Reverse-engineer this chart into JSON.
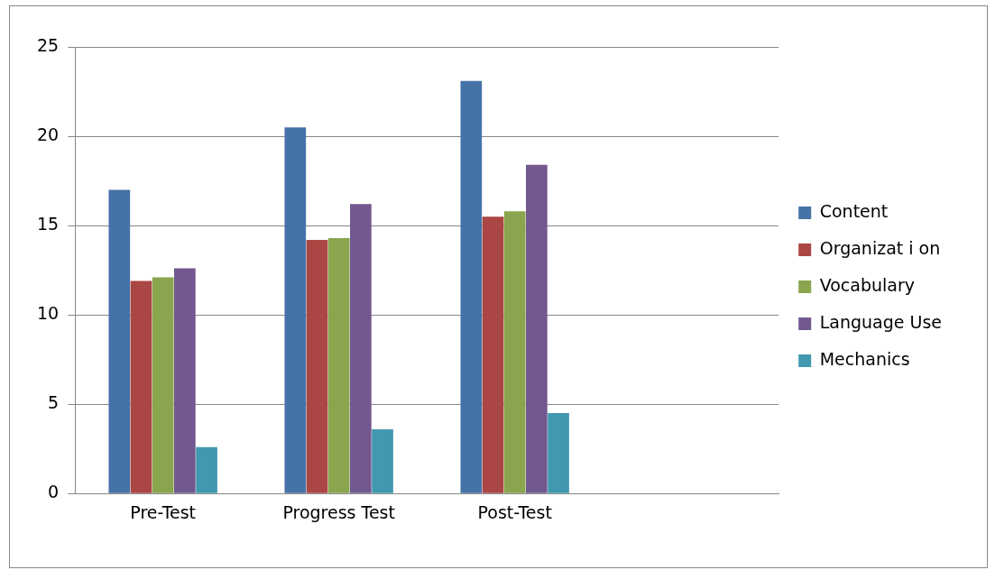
{
  "chart_data": {
    "type": "bar",
    "categories": [
      "Pre-Test",
      "Progress Test",
      "Post-Test",
      null
    ],
    "series": [
      {
        "name": "Content",
        "color": "#4572a7",
        "values": [
          17,
          20.5,
          23.1,
          null
        ]
      },
      {
        "name": "Organizat i on",
        "color": "#aa4643",
        "values": [
          11.9,
          14.2,
          15.5,
          null
        ]
      },
      {
        "name": "Vocabulary",
        "color": "#89a54e",
        "values": [
          12.1,
          14.3,
          15.8,
          null
        ]
      },
      {
        "name": "Language Use",
        "color": "#71588f",
        "values": [
          12.6,
          16.2,
          18.4,
          null
        ]
      },
      {
        "name": "Mechanics",
        "color": "#4198af",
        "values": [
          2.6,
          3.6,
          4.5,
          null
        ]
      }
    ],
    "ylim": [
      0,
      25
    ],
    "yticks": [
      0,
      5,
      10,
      15,
      20,
      25
    ],
    "grid": "y",
    "legend": "right"
  }
}
